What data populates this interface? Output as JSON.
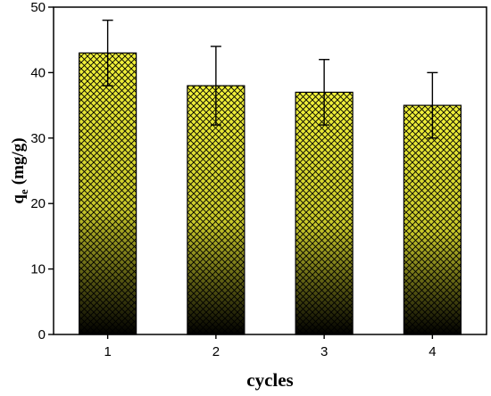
{
  "chart_data": {
    "type": "bar",
    "categories": [
      "1",
      "2",
      "3",
      "4"
    ],
    "values": [
      43,
      38,
      37,
      35
    ],
    "error_lower": [
      38,
      32,
      32,
      30
    ],
    "error_upper": [
      48,
      44,
      42,
      40
    ],
    "xlabel": "cycles",
    "ylabel_main": "q",
    "ylabel_sub": "e",
    "ylabel_unit": "(mg/g)",
    "ylim": [
      0,
      50
    ],
    "yticks": [
      "0",
      "10",
      "20",
      "30",
      "40",
      "50"
    ],
    "grid": false,
    "legend": "none",
    "bar_fill": "hatched cross-hatch, yellow-to-black vertical gradient",
    "colors": {
      "bar_top": "#f2f23a",
      "bar_bottom": "#000000",
      "hatch": "#000000"
    }
  }
}
